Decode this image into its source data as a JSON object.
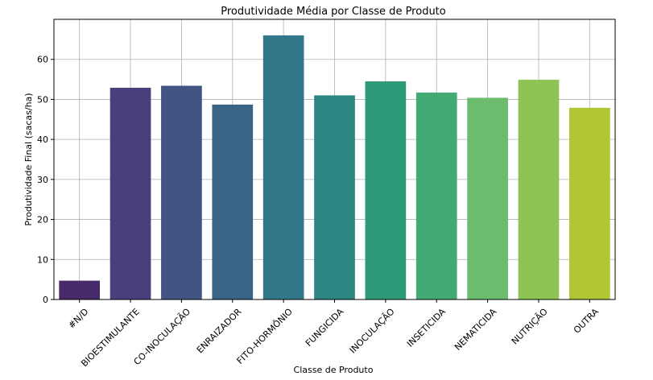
{
  "chart_data": {
    "type": "bar",
    "title": "Produtividade Média por Classe de Produto",
    "xlabel": "Classe de Produto",
    "ylabel": "Produtividade Final (sacas/ha)",
    "categories": [
      "#N/D",
      "BIOESTIMULANTE",
      "CO-INOCULAÇÃO",
      "ENRAIZADOR",
      "FITO-HORMÔNIO",
      "FUNGICIDA",
      "INOCULAÇÃO",
      "INSETICIDA",
      "NEMATICIDA",
      "NUTRIÇÃO",
      "OUTRA"
    ],
    "values": [
      4.7,
      52.9,
      53.4,
      48.7,
      66.0,
      51.0,
      54.5,
      51.7,
      50.4,
      54.9,
      47.9
    ],
    "colors": [
      "#472a6a",
      "#4a3f7c",
      "#425482",
      "#3a6485",
      "#33788a",
      "#2c8581",
      "#2e9a7a",
      "#43aa76",
      "#6bbc6f",
      "#8ec453",
      "#b1c535"
    ],
    "ylim": [
      0,
      70
    ],
    "yticks": [
      0,
      10,
      20,
      30,
      40,
      50,
      60
    ],
    "grid": true
  }
}
